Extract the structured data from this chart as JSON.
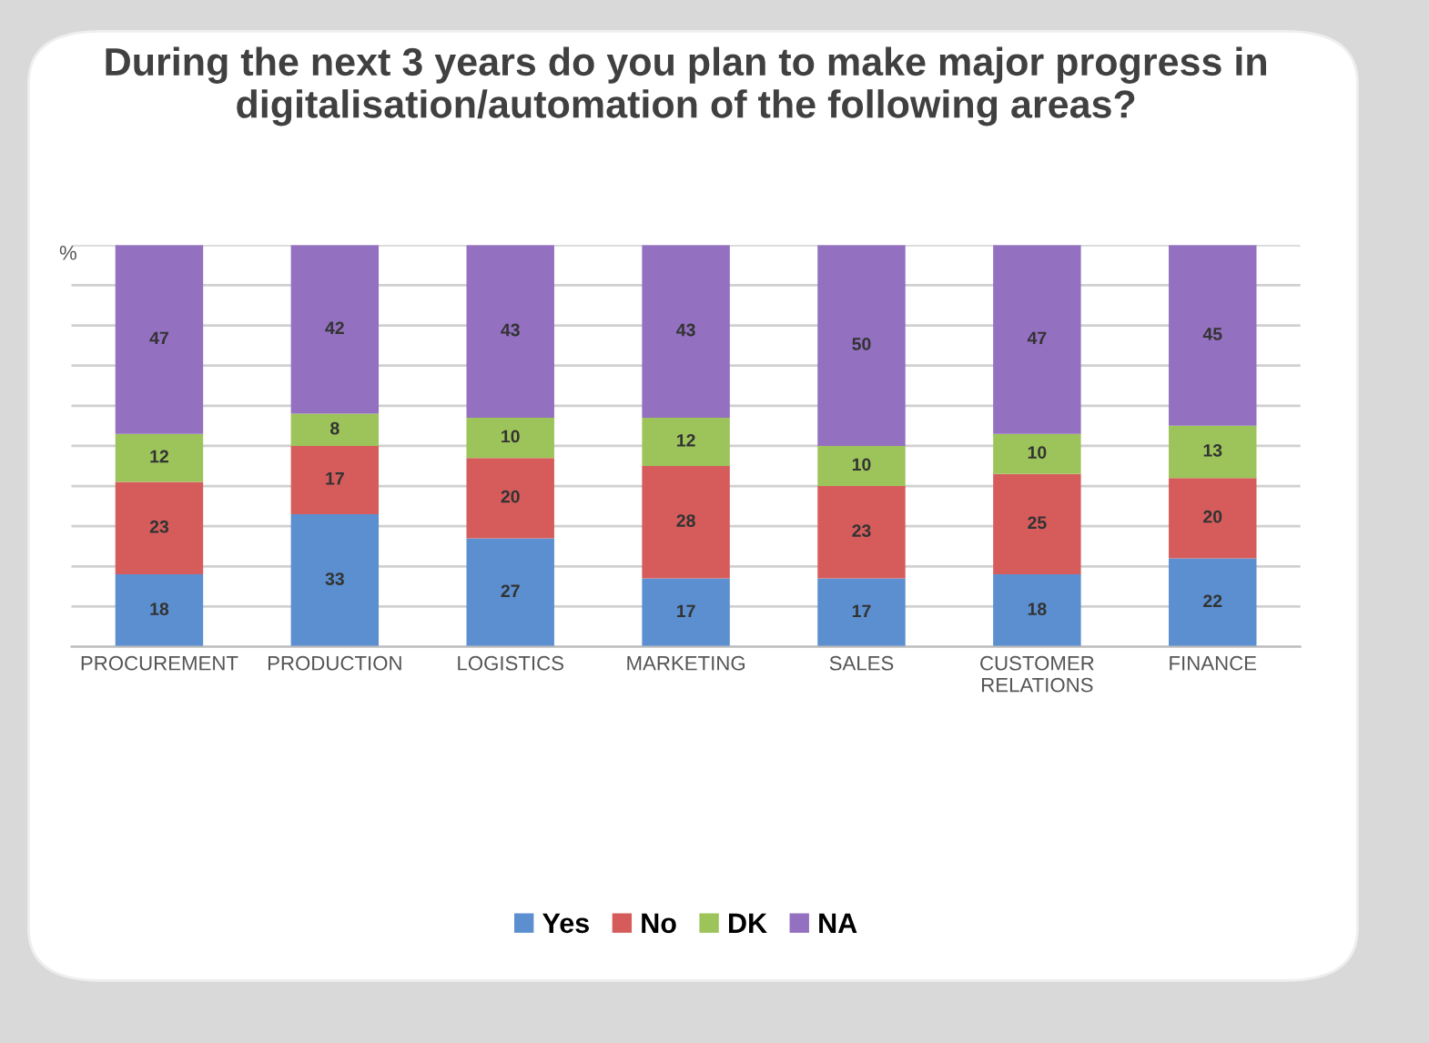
{
  "chart_data": {
    "type": "bar",
    "stacked": true,
    "title": "During the next 3 years do you plan to make major progress in digitalisation/automation of the following areas?",
    "ylabel": "%",
    "categories": [
      "PROCUREMENT",
      "PRODUCTION",
      "LOGISTICS",
      "MARKETING",
      "SALES",
      "CUSTOMER\nRELATIONS",
      "FINANCE"
    ],
    "series": [
      {
        "name": "Yes",
        "color": "#5b8fd0",
        "values": [
          18,
          33,
          27,
          17,
          17,
          18,
          22
        ]
      },
      {
        "name": "No",
        "color": "#d65c5c",
        "values": [
          23,
          17,
          20,
          28,
          23,
          25,
          20
        ]
      },
      {
        "name": "DK",
        "color": "#9dc45a",
        "values": [
          12,
          8,
          10,
          12,
          10,
          10,
          13
        ]
      },
      {
        "name": "NA",
        "color": "#9370c0",
        "values": [
          47,
          42,
          43,
          43,
          50,
          47,
          45
        ]
      }
    ],
    "ylim": [
      0,
      100
    ],
    "yticks": [
      0,
      10,
      20,
      30,
      40,
      50,
      60,
      70,
      80,
      90,
      100
    ],
    "tick_labels": "x",
    "grid": "y",
    "legend": "bottom",
    "data_labels": true
  }
}
